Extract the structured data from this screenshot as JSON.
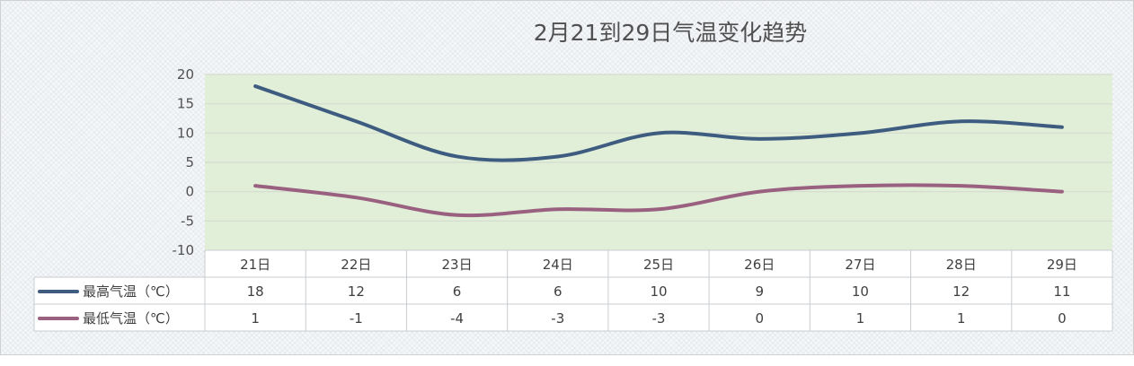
{
  "chart_data": {
    "type": "line",
    "title": "2月21到29日气温变化趋势",
    "categories": [
      "21日",
      "22日",
      "23日",
      "24日",
      "25日",
      "26日",
      "27日",
      "28日",
      "29日"
    ],
    "series": [
      {
        "name": "最高气温（℃）",
        "values": [
          18,
          12,
          6,
          6,
          10,
          9,
          10,
          12,
          11
        ],
        "color": "#3d5c80"
      },
      {
        "name": "最低气温（℃）",
        "values": [
          1,
          -1,
          -4,
          -3,
          -3,
          0,
          1,
          1,
          0
        ],
        "color": "#9a6080"
      }
    ],
    "ylim": [
      -10,
      20
    ],
    "yticks": [
      "20",
      "15",
      "10",
      "5",
      "0",
      "-5",
      "-10"
    ],
    "grid": true,
    "legend": "data-table",
    "plot_background": "#e1efd9",
    "smooth": true
  }
}
